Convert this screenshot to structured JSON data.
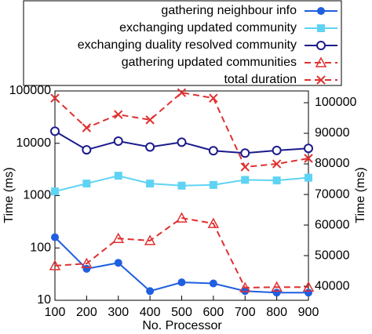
{
  "chart_data": {
    "type": "line",
    "x": [
      100,
      200,
      300,
      400,
      500,
      600,
      700,
      800,
      900
    ],
    "xlabel": "No. Processor",
    "ylabel": "Time (ms)",
    "y2label": "Time (ms)",
    "xlim": [
      100,
      900
    ],
    "xticks": [
      100,
      200,
      300,
      400,
      500,
      600,
      700,
      800,
      900
    ],
    "ylim": [
      10,
      100000
    ],
    "yticks": [
      10,
      100,
      1000,
      10000,
      100000
    ],
    "ylog": true,
    "y2lim": [
      35400,
      103850
    ],
    "y2ticks": [
      40000,
      50000,
      60000,
      70000,
      80000,
      90000,
      100000
    ],
    "y2color": "#e69500",
    "series": [
      {
        "name": "gathering neighbour info",
        "color": "#1f5fe0",
        "marker": "circle-filled",
        "dashed": false,
        "values": [
          160,
          40,
          52,
          15,
          22,
          21,
          15,
          14,
          14
        ]
      },
      {
        "name": "exchanging updated community",
        "color": "#5fd3f3",
        "marker": "square",
        "dashed": false,
        "values": [
          1200,
          1700,
          2400,
          1700,
          1550,
          1600,
          2000,
          1950,
          2200
        ]
      },
      {
        "name": "exchanging duality resolved community",
        "color": "#1a1a8c",
        "marker": "circle-open",
        "dashed": false,
        "values": [
          17000,
          7500,
          11000,
          8500,
          10500,
          7200,
          6500,
          7300,
          8000
        ]
      },
      {
        "name": "gathering updated communities",
        "color": "#e03030",
        "marker": "triangle",
        "dashed": true,
        "axis": "y2",
        "values": [
          46700,
          47400,
          55600,
          54900,
          62300,
          60500,
          39500,
          39700,
          39700
        ]
      },
      {
        "name": "total duration",
        "color": "#e03030",
        "marker": "cross",
        "dashed": true,
        "axis": "y2",
        "values": [
          101500,
          91800,
          96150,
          94400,
          103300,
          101500,
          79000,
          80000,
          81800
        ]
      }
    ]
  }
}
